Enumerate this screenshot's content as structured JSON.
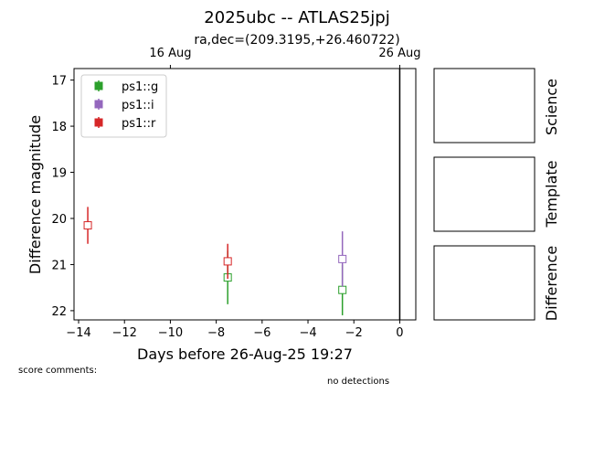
{
  "chart_data": {
    "type": "scatter",
    "title": "2025ubc -- ATLAS25jpj",
    "subtitle": "ra,dec=(209.3195,+26.460722)",
    "xlabel": "Days before 26-Aug-25 19:27",
    "ylabel": "Difference magnitude",
    "xlim": [
      -14.2,
      0.7
    ],
    "ylim": [
      22.2,
      16.75
    ],
    "y_inverted": true,
    "x_ticks": [
      -14,
      -12,
      -10,
      -8,
      -6,
      -4,
      -2,
      0
    ],
    "x_tick_labels": [
      "−14",
      "−12",
      "−10",
      "−8",
      "−6",
      "−4",
      "−2",
      "0"
    ],
    "y_ticks": [
      17,
      18,
      19,
      20,
      21,
      22
    ],
    "y_tick_labels": [
      "17",
      "18",
      "19",
      "20",
      "21",
      "22"
    ],
    "top_ticks": [
      {
        "x": -10,
        "label": "16 Aug"
      },
      {
        "x": 0,
        "label": "26 Aug"
      }
    ],
    "vline_x": 0,
    "grid": false,
    "legend_position": "top-left",
    "series": [
      {
        "name": "ps1::g",
        "color": "#2ca02c",
        "points": [
          {
            "x": -7.5,
            "y": 21.28,
            "err": 0.58
          },
          {
            "x": -2.5,
            "y": 21.55,
            "err": 0.55
          }
        ]
      },
      {
        "name": "ps1::i",
        "color": "#9467bd",
        "points": [
          {
            "x": -2.5,
            "y": 20.88,
            "err": 0.6
          }
        ]
      },
      {
        "name": "ps1::r",
        "color": "#d62728",
        "points": [
          {
            "x": -13.6,
            "y": 20.15,
            "err": 0.4
          },
          {
            "x": -7.5,
            "y": 20.93,
            "err": 0.38
          }
        ]
      }
    ]
  },
  "panels": {
    "science_label": "Science",
    "template_label": "Template",
    "difference_label": "Difference"
  },
  "footer": {
    "score_comments": "score comments:",
    "no_detections": "no detections"
  }
}
